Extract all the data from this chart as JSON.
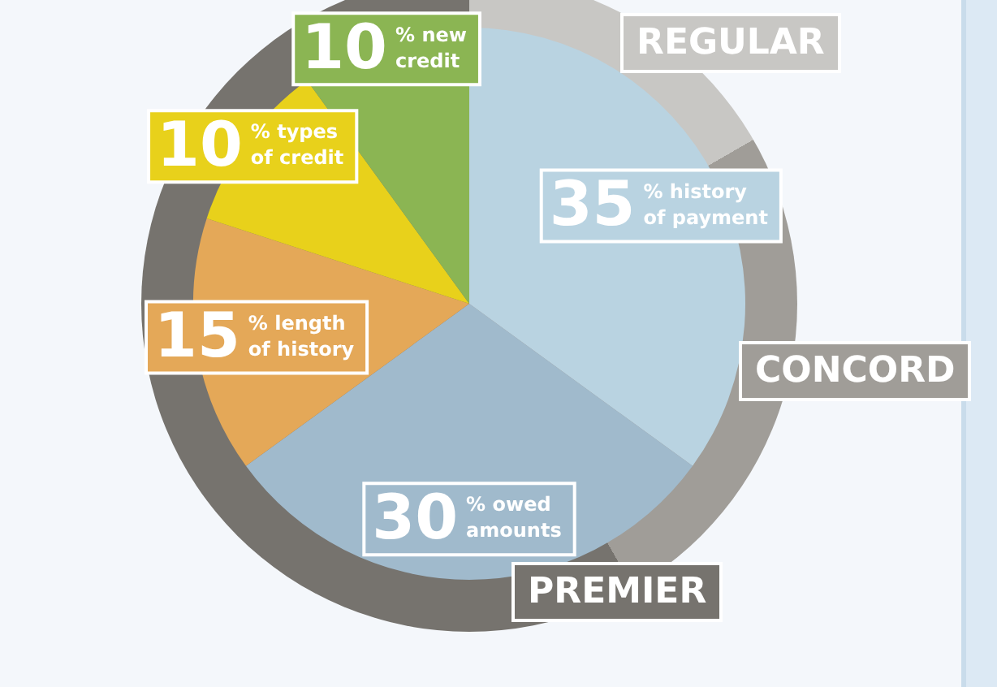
{
  "chart_data": {
    "type": "pie",
    "categories": [
      "history of payment",
      "owed amounts",
      "length of history",
      "types of credit",
      "new credit"
    ],
    "values": [
      35,
      30,
      15,
      10,
      10
    ],
    "value_labels": [
      "35%",
      "30%",
      "15%",
      "10%",
      "10%"
    ],
    "colors": [
      "#b9d3e1",
      "#a0bacc",
      "#e4a858",
      "#e8d11b",
      "#8bb553"
    ],
    "annotations": [
      "REGULAR",
      "CONCORD",
      "PREMIER"
    ],
    "legend": false
  }
}
